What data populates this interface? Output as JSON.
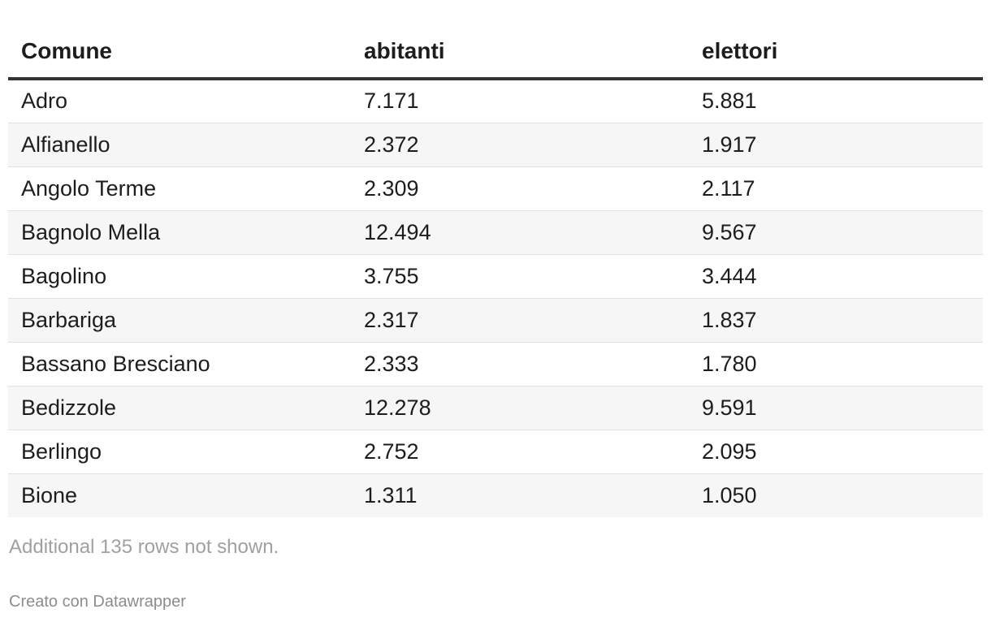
{
  "chart_data": {
    "type": "table",
    "columns": [
      "Comune",
      "abitanti",
      "elettori"
    ],
    "rows": [
      [
        "Adro",
        "7.171",
        "5.881"
      ],
      [
        "Alfianello",
        "2.372",
        "1.917"
      ],
      [
        "Angolo Terme",
        "2.309",
        "2.117"
      ],
      [
        "Bagnolo Mella",
        "12.494",
        "9.567"
      ],
      [
        "Bagolino",
        "3.755",
        "3.444"
      ],
      [
        "Barbariga",
        "2.317",
        "1.837"
      ],
      [
        "Bassano Bresciano",
        "2.333",
        "1.780"
      ],
      [
        "Bedizzole",
        "12.278",
        "9.591"
      ],
      [
        "Berlingo",
        "2.752",
        "2.095"
      ],
      [
        "Bione",
        "1.311",
        "1.050"
      ]
    ],
    "note": "Additional 135 rows not shown.",
    "credit": "Creato con Datawrapper"
  }
}
